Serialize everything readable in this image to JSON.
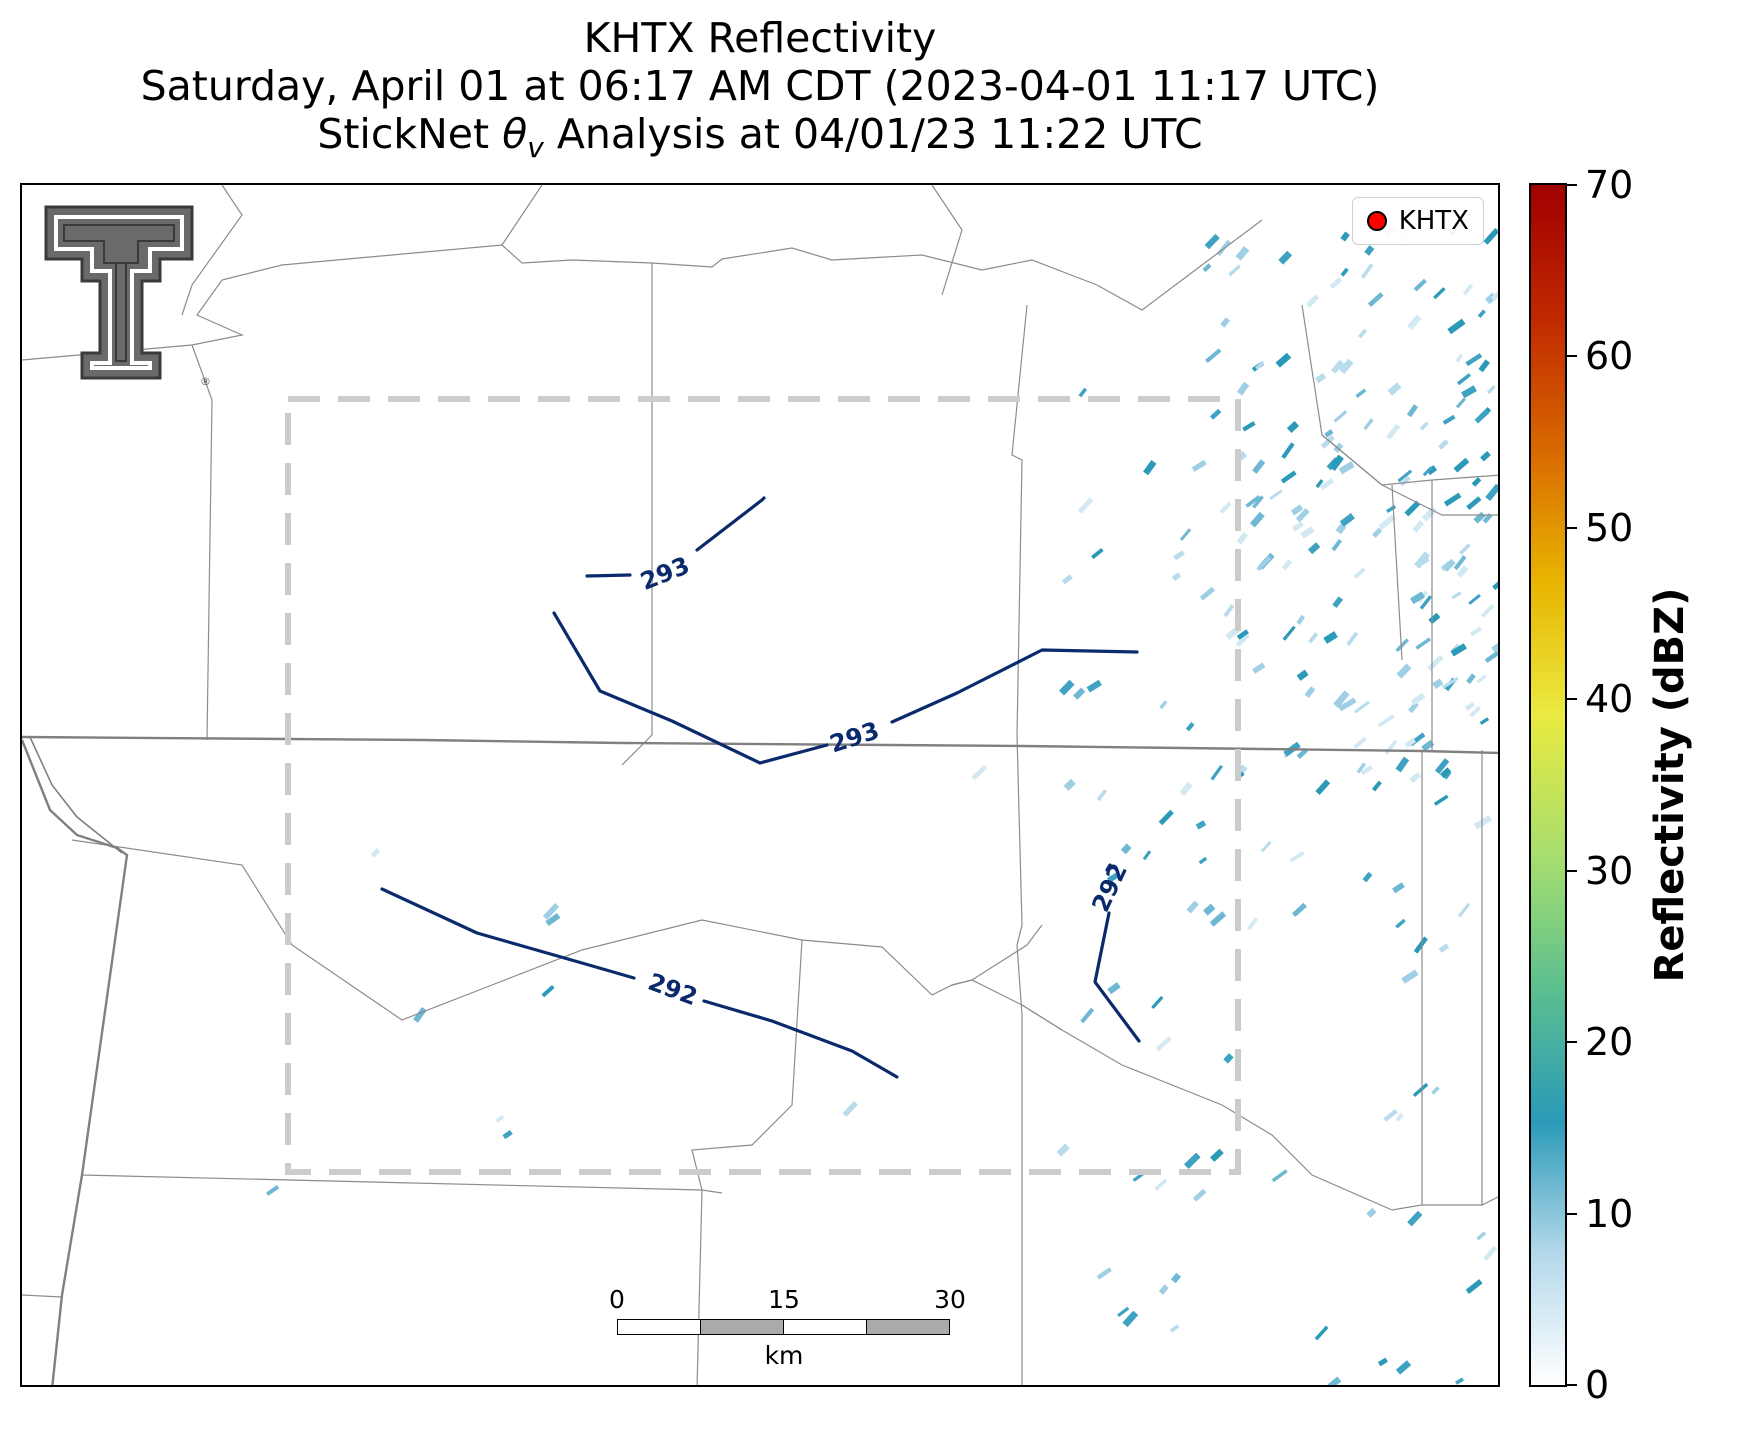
{
  "title": {
    "line1": "KHTX Reflectivity",
    "line2": "Saturday, April 01 at 06:17 AM CDT (2023-04-01 11:17 UTC)",
    "line3_prefix": "StickNet ",
    "line3_symbol": "θ",
    "line3_subscript": "v",
    "line3_suffix": " Analysis at 04/01/23 11:22 UTC"
  },
  "legend": {
    "label": "KHTX",
    "marker_color": "#ff0000"
  },
  "logo": {
    "icon": "texas-tech-double-t-logo",
    "mark": "®"
  },
  "scalebar": {
    "ticks": [
      "0",
      "15",
      "30"
    ],
    "unit": "km"
  },
  "colorbar": {
    "label": "Reflectivity (dBZ)",
    "ticks": [
      "0",
      "10",
      "20",
      "30",
      "40",
      "50",
      "60",
      "70"
    ],
    "min": 0,
    "max": 70,
    "colors": [
      "#ffffff",
      "#b3d8ea",
      "#2a9ab8",
      "#5bbf8f",
      "#a6de6e",
      "#eaea40",
      "#e8b400",
      "#d86800",
      "#c02800",
      "#a00000"
    ]
  },
  "contours": [
    {
      "label": "293"
    },
    {
      "label": "293"
    },
    {
      "label": "292"
    },
    {
      "label": "292"
    }
  ],
  "contour_color": "#0a2a6b",
  "analysis_box_color": "#c8c8c8"
}
